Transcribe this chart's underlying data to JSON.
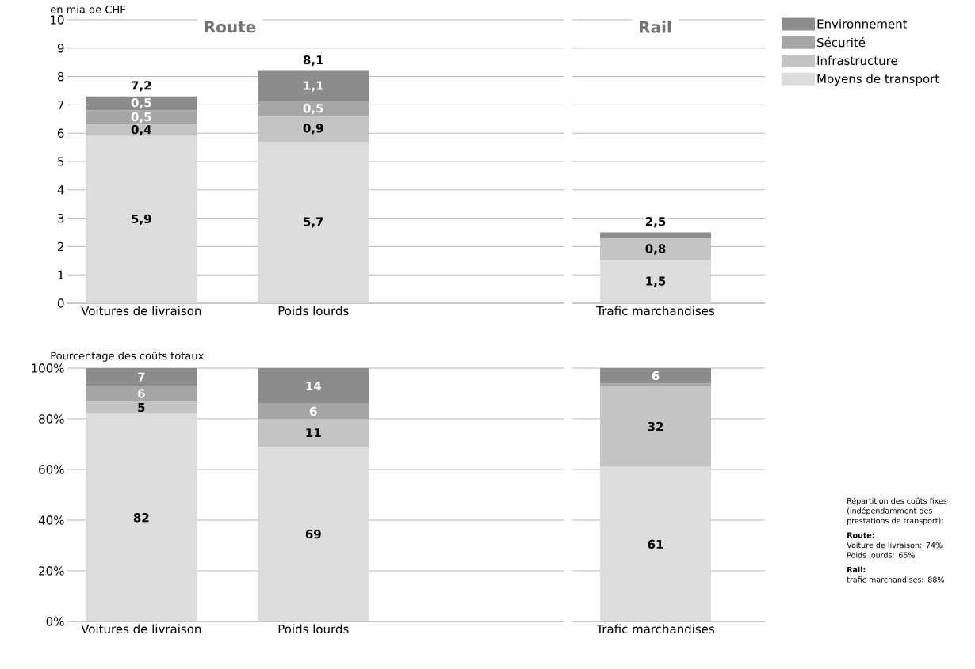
{
  "chart_data": [
    {
      "type": "bar",
      "stacked": true,
      "title": "Route",
      "ylabel": "en mia de CHF",
      "categories": [
        "Voitures de livraison",
        "Poids lourds"
      ],
      "ylim": [
        0,
        10
      ],
      "yticks": [
        0,
        1,
        2,
        3,
        4,
        5,
        6,
        7,
        8,
        9,
        10
      ],
      "grid": "y",
      "legend": "top right",
      "series": [
        {
          "name": "Moyens de transport",
          "color": "#dcdcdc",
          "values": [
            5.9,
            5.7
          ],
          "value_labels": [
            "5,9",
            "5,7"
          ]
        },
        {
          "name": "Infrastructure",
          "color": "#c4c4c4",
          "values": [
            0.4,
            0.9
          ],
          "value_labels": [
            "0,4",
            "0,9"
          ]
        },
        {
          "name": "Sécurité",
          "color": "#a6a6a6",
          "values": [
            0.5,
            0.5
          ],
          "value_labels": [
            "0,5",
            "0,5"
          ]
        },
        {
          "name": "Environnement",
          "color": "#8c8c8c",
          "values": [
            0.5,
            1.1
          ],
          "value_labels": [
            "0,5",
            "1,1"
          ]
        }
      ],
      "totals": [
        "7,2",
        "8,1"
      ]
    },
    {
      "type": "bar",
      "stacked": true,
      "title": "Rail",
      "categories": [
        "Trafic marchandises"
      ],
      "ylim": [
        0,
        10
      ],
      "yticks": [
        0,
        1,
        2,
        3,
        4,
        5,
        6,
        7,
        8,
        9,
        10
      ],
      "grid": "y",
      "tick_labels": "x",
      "series": [
        {
          "color": "#dcdcdc",
          "values": [
            1.5
          ],
          "value_labels": [
            "1,5"
          ]
        },
        {
          "color": "#c4c4c4",
          "values": [
            0.8
          ],
          "value_labels": [
            "0,8"
          ]
        },
        {
          "color": "#a6a6a6",
          "values": [
            0
          ],
          "value_labels": [
            null
          ]
        },
        {
          "color": "#8c8c8c",
          "values": [
            0.2
          ],
          "value_labels": [
            null
          ]
        }
      ],
      "totals": [
        "2,5"
      ]
    },
    {
      "type": "bar",
      "stacked": true,
      "ylabel": "Pourcentage des coûts totaux",
      "categories": [
        "Voitures de livraison",
        "Poids lourds"
      ],
      "ylim": [
        0,
        100
      ],
      "yticks": [
        {
          "value": 0,
          "label": "0%"
        },
        {
          "value": 20,
          "label": "20%"
        },
        {
          "value": 40,
          "label": "40%"
        },
        {
          "value": 60,
          "label": "60%"
        },
        {
          "value": 80,
          "label": "80%"
        },
        {
          "value": 100,
          "label": "100%"
        }
      ],
      "grid": "y",
      "series": [
        {
          "color": "#dcdcdc",
          "values": [
            82,
            69
          ],
          "value_labels": [
            "82",
            "69"
          ]
        },
        {
          "color": "#c4c4c4",
          "values": [
            5,
            11
          ],
          "value_labels": [
            "5",
            "11"
          ]
        },
        {
          "color": "#a6a6a6",
          "values": [
            6,
            6
          ],
          "value_labels": [
            "6",
            "6"
          ]
        },
        {
          "color": "#8c8c8c",
          "values": [
            7,
            14
          ],
          "value_labels": [
            "7",
            "14"
          ]
        }
      ]
    },
    {
      "type": "bar",
      "stacked": true,
      "categories": [
        "Trafic marchandises"
      ],
      "ylim": [
        0,
        100
      ],
      "yticks": [
        0,
        20,
        40,
        60,
        80,
        100
      ],
      "grid": "y",
      "tick_labels": "x",
      "series": [
        {
          "color": "#dcdcdc",
          "values": [
            61
          ],
          "value_labels": [
            "61"
          ]
        },
        {
          "color": "#c4c4c4",
          "values": [
            32
          ],
          "value_labels": [
            "32"
          ]
        },
        {
          "color": "#a6a6a6",
          "values": [
            1
          ],
          "value_labels": [
            null
          ]
        },
        {
          "color": "#8c8c8c",
          "values": [
            6
          ],
          "value_labels": [
            "6"
          ]
        }
      ],
      "annotations": [
        "Répartition des coûts fixes (indépendamment des prestations de transport):",
        "Route:",
        "Voiture de livraison: 74%",
        "Poids lourds: 65%",
        "Rail:",
        "trafic marchandises: 88%"
      ]
    }
  ]
}
